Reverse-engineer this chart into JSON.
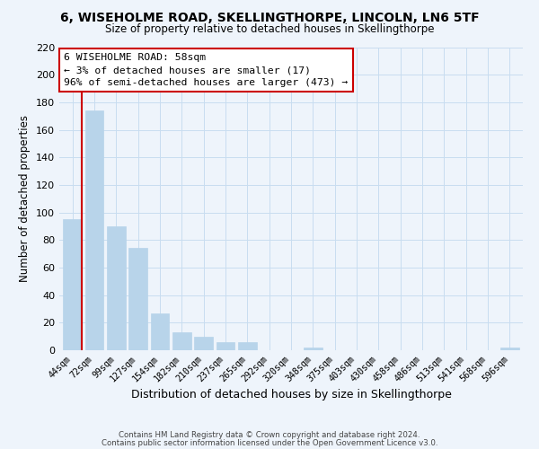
{
  "title": "6, WISEHOLME ROAD, SKELLINGTHORPE, LINCOLN, LN6 5TF",
  "subtitle": "Size of property relative to detached houses in Skellingthorpe",
  "xlabel": "Distribution of detached houses by size in Skellingthorpe",
  "ylabel": "Number of detached properties",
  "bar_labels": [
    "44sqm",
    "72sqm",
    "99sqm",
    "127sqm",
    "154sqm",
    "182sqm",
    "210sqm",
    "237sqm",
    "265sqm",
    "292sqm",
    "320sqm",
    "348sqm",
    "375sqm",
    "403sqm",
    "430sqm",
    "458sqm",
    "486sqm",
    "513sqm",
    "541sqm",
    "568sqm",
    "596sqm"
  ],
  "bar_values": [
    95,
    174,
    90,
    74,
    27,
    13,
    10,
    6,
    6,
    0,
    0,
    2,
    0,
    0,
    0,
    0,
    0,
    0,
    0,
    0,
    2
  ],
  "bar_color": "#b8d4ea",
  "highlight_color": "#cc0000",
  "ylim": [
    0,
    220
  ],
  "yticks": [
    0,
    20,
    40,
    60,
    80,
    100,
    120,
    140,
    160,
    180,
    200,
    220
  ],
  "annotation_title": "6 WISEHOLME ROAD: 58sqm",
  "annotation_line1": "← 3% of detached houses are smaller (17)",
  "annotation_line2": "96% of semi-detached houses are larger (473) →",
  "annotation_box_color": "#ffffff",
  "annotation_box_edge": "#cc0000",
  "marker_bar_index": 0,
  "footer1": "Contains HM Land Registry data © Crown copyright and database right 2024.",
  "footer2": "Contains public sector information licensed under the Open Government Licence v3.0.",
  "grid_color": "#c8ddf0",
  "background_color": "#eef4fb"
}
